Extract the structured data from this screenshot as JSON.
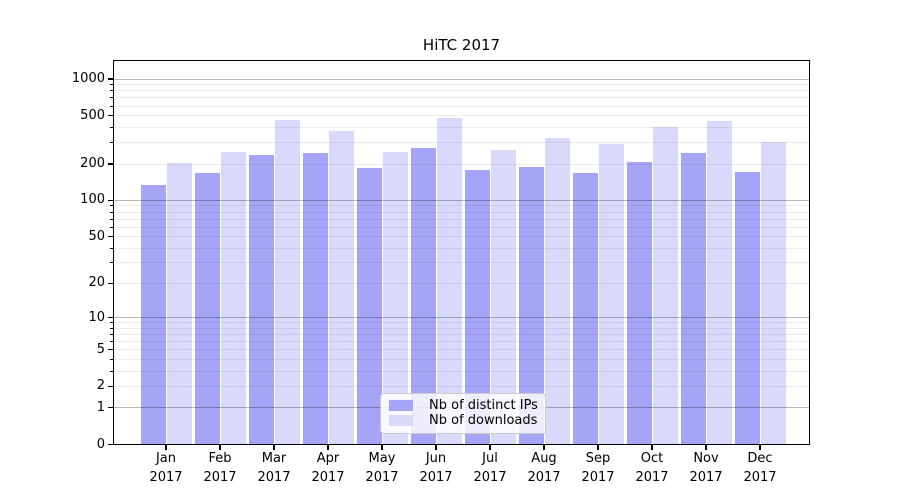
{
  "chart_data": {
    "type": "bar",
    "title": "HiTC 2017",
    "x_categories": [
      "Jan",
      "Feb",
      "Mar",
      "Apr",
      "May",
      "Jun",
      "Jul",
      "Aug",
      "Sep",
      "Oct",
      "Nov",
      "Dec"
    ],
    "x_year_label": "2017",
    "series": [
      {
        "name": "Nb of distinct IPs",
        "color": "#a5a5f7",
        "values": [
          134,
          170,
          237,
          246,
          186,
          272,
          180,
          188,
          167,
          206,
          248,
          173
        ]
      },
      {
        "name": "Nb of downloads",
        "color": "#d9d9fb",
        "values": [
          205,
          250,
          465,
          373,
          252,
          475,
          262,
          328,
          291,
          400,
          450,
          302
        ]
      }
    ],
    "y_scale": "symlog (position proportional to log10(value+1))",
    "y_ticks": [
      0,
      1,
      2,
      5,
      10,
      20,
      50,
      100,
      200,
      500,
      1000
    ],
    "y_minor_gridlines": [
      2,
      3,
      4,
      5,
      6,
      7,
      8,
      9,
      20,
      30,
      40,
      50,
      60,
      70,
      80,
      90,
      200,
      300,
      400,
      500,
      600,
      700,
      800,
      900
    ],
    "y_decade_gridlines": [
      1,
      10,
      100,
      1000
    ],
    "ylim": [
      0,
      1435
    ],
    "grid": "horizontal major+minor, drawn above bars",
    "legend": {
      "position": "lower center",
      "entries": [
        "Nb of distinct IPs",
        "Nb of downloads"
      ]
    }
  },
  "colors": {
    "bar_distinct_ips": "#a5a5f7",
    "bar_downloads": "#d9d9fb",
    "grid_minor": "rgba(0,0,0,0.075)",
    "grid_decade": "rgba(0,0,0,0.28)",
    "axis": "#000000",
    "legend_bg": "rgba(255,255,255,0.8)",
    "legend_border": "#cccccc"
  }
}
